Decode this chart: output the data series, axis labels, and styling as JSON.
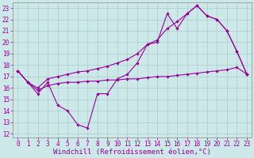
{
  "xlabel": "Windchill (Refroidissement éolien,°C)",
  "bg_color": "#cce8e8",
  "line_color": "#990099",
  "xlim_min": -0.5,
  "xlim_max": 23.5,
  "ylim_min": 11.7,
  "ylim_max": 23.5,
  "xticks": [
    0,
    1,
    2,
    3,
    4,
    5,
    6,
    7,
    8,
    9,
    10,
    11,
    12,
    13,
    14,
    15,
    16,
    17,
    18,
    19,
    20,
    21,
    22,
    23
  ],
  "yticks": [
    12,
    13,
    14,
    15,
    16,
    17,
    18,
    19,
    20,
    21,
    22,
    23
  ],
  "curve1_x": [
    0,
    1,
    2,
    3,
    4,
    5,
    6,
    7,
    8,
    9,
    10,
    11,
    12,
    13,
    14,
    15,
    16,
    17,
    18,
    19,
    20,
    21,
    22,
    23
  ],
  "curve1_y": [
    17.5,
    16.5,
    15.5,
    16.5,
    14.5,
    14.0,
    12.8,
    12.5,
    15.5,
    15.5,
    16.8,
    17.2,
    18.2,
    19.8,
    20.0,
    22.5,
    21.2,
    22.5,
    23.2,
    22.3,
    22.0,
    21.0,
    19.2,
    17.2
  ],
  "curve2_x": [
    0,
    1,
    2,
    3,
    4,
    5,
    6,
    7,
    8,
    9,
    10,
    11,
    12,
    13,
    14,
    15,
    16,
    17,
    18,
    19,
    20,
    21,
    22,
    23
  ],
  "curve2_y": [
    17.5,
    16.5,
    15.8,
    16.2,
    16.4,
    16.5,
    16.5,
    16.6,
    16.6,
    16.7,
    16.7,
    16.8,
    16.8,
    16.9,
    17.0,
    17.0,
    17.1,
    17.2,
    17.3,
    17.4,
    17.5,
    17.6,
    17.8,
    17.2
  ],
  "curve3_x": [
    0,
    1,
    2,
    3,
    4,
    5,
    6,
    7,
    8,
    9,
    10,
    11,
    12,
    13,
    14,
    15,
    16,
    17,
    18,
    19,
    20,
    21,
    22,
    23
  ],
  "curve3_y": [
    17.5,
    16.5,
    16.0,
    16.8,
    17.0,
    17.2,
    17.4,
    17.5,
    17.7,
    17.9,
    18.2,
    18.5,
    19.0,
    19.8,
    20.2,
    21.2,
    21.8,
    22.5,
    23.2,
    22.3,
    22.0,
    21.0,
    19.2,
    17.2
  ],
  "tick_fontsize": 5.5,
  "xlabel_fontsize": 6.5,
  "grid_color": "#aacccc",
  "marker": "D",
  "marker_size": 1.8,
  "line_width": 0.8
}
